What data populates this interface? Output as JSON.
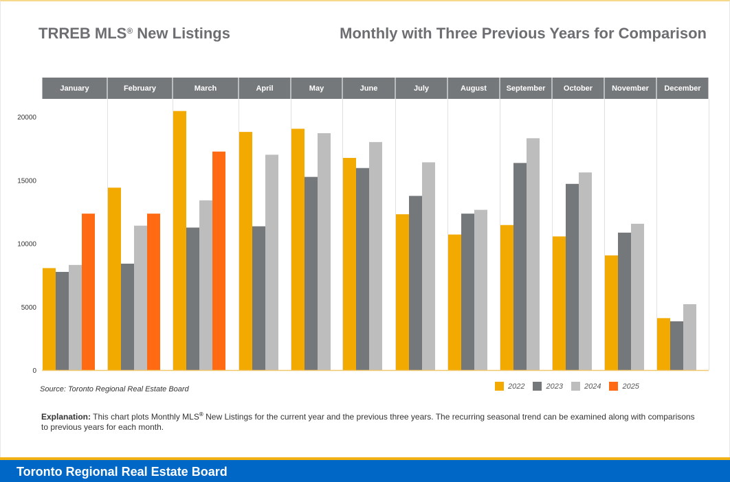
{
  "header": {
    "title_main": "TRREB MLS",
    "title_reg": "®",
    "title_rest": " New Listings",
    "subtitle": "Monthly with Three Previous Years for Comparison"
  },
  "source": "Source: Toronto Regional Real Estate Board",
  "explanation": {
    "label": "Explanation:",
    "text_before": " This chart plots Monthly MLS",
    "reg": "®",
    "text_after": " New Listings for the current year and the previous three years. The recurring seasonal trend can be examined along with comparisons to previous years for each month."
  },
  "footer": {
    "org": "Toronto Regional Real Estate Board"
  },
  "chart_data": {
    "type": "bar",
    "categories": [
      "January",
      "February",
      "March",
      "April",
      "May",
      "June",
      "July",
      "August",
      "September",
      "October",
      "November",
      "December"
    ],
    "series": [
      {
        "name": "2022",
        "color": "#f2a900",
        "values": [
          8050,
          14400,
          20450,
          18800,
          19050,
          16750,
          12300,
          10700,
          11450,
          10550,
          9050,
          4100
        ]
      },
      {
        "name": "2023",
        "color": "#75787b",
        "values": [
          7750,
          8400,
          11250,
          11350,
          15250,
          15950,
          13750,
          12350,
          16350,
          14700,
          10850,
          3850
        ]
      },
      {
        "name": "2024",
        "color": "#bdbdbd",
        "values": [
          8300,
          11400,
          13400,
          17000,
          18700,
          18000,
          16400,
          12650,
          18300,
          15600,
          11550,
          5200
        ]
      },
      {
        "name": "2025",
        "color": "#ff6a13",
        "values": [
          12350,
          12350,
          17250,
          null,
          null,
          null,
          null,
          null,
          null,
          null,
          null,
          null
        ]
      }
    ],
    "yticks": [
      0,
      5000,
      10000,
      15000,
      20000
    ],
    "ylim": [
      0,
      22000
    ],
    "grid": false,
    "legend": "bottom-right"
  }
}
